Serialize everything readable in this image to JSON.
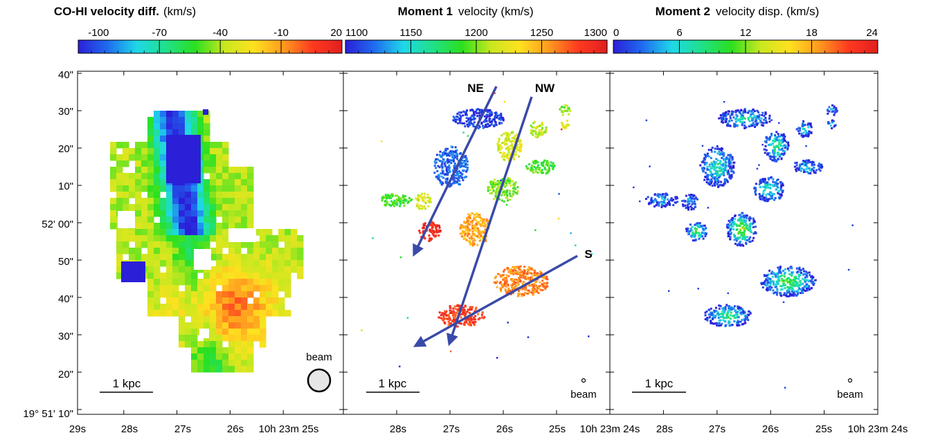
{
  "chart_data": [
    {
      "type": "heatmap",
      "title_bold": "CO-HI velocity diff.",
      "title_unit": "(km/s)",
      "colorbar": {
        "min": -110,
        "max": 20,
        "ticks": [
          -100,
          -70,
          -40,
          -10,
          20
        ]
      },
      "colormap": [
        "#2b1fd8",
        "#1f6cf0",
        "#1fd8e8",
        "#1fe08a",
        "#2be01f",
        "#c8e81f",
        "#ffe11f",
        "#ff9a1f",
        "#ff3a1f",
        "#e01f1f"
      ],
      "scale_bar": "1 kpc",
      "beam_label": "beam",
      "x_ticks": [
        "29s",
        "28s",
        "27s",
        "26s",
        "10h 23m 25s"
      ],
      "y_ticks": [
        "40\"",
        "30\"",
        "20\"",
        "10\"",
        "52' 00\"",
        "50\"",
        "40\"",
        "30\"",
        "20\"",
        "19° 51' 10\""
      ]
    },
    {
      "type": "heatmap",
      "title_bold": "Moment 1",
      "title_unit": "velocity (km/s)",
      "colorbar": {
        "min": 1100,
        "max": 1300,
        "ticks": [
          1100,
          1150,
          1200,
          1250,
          1300
        ]
      },
      "colormap": [
        "#2b1fd8",
        "#1f6cf0",
        "#1fd8e8",
        "#1fe08a",
        "#2be01f",
        "#c8e81f",
        "#ffe11f",
        "#ff9a1f",
        "#ff3a1f",
        "#e01f1f"
      ],
      "scale_bar": "1 kpc",
      "beam_label": "beam",
      "x_ticks": [
        "28s",
        "27s",
        "26s",
        "25s",
        "10h 23m 24s"
      ],
      "annotations": [
        "NE",
        "NW",
        "S"
      ]
    },
    {
      "type": "heatmap",
      "title_bold": "Moment 2",
      "title_unit": "velocity disp. (km/s)",
      "colorbar": {
        "min": 0,
        "max": 24,
        "ticks": [
          0,
          6,
          12,
          18,
          24
        ]
      },
      "colormap": [
        "#2b1fd8",
        "#1f6cf0",
        "#1fd8e8",
        "#1fe08a",
        "#2be01f",
        "#c8e81f",
        "#ffe11f",
        "#ff9a1f",
        "#ff3a1f",
        "#e01f1f"
      ],
      "scale_bar": "1 kpc",
      "beam_label": "beam",
      "x_ticks": [
        "28s",
        "27s",
        "26s",
        "25s",
        "10h 23m 24s"
      ]
    }
  ]
}
